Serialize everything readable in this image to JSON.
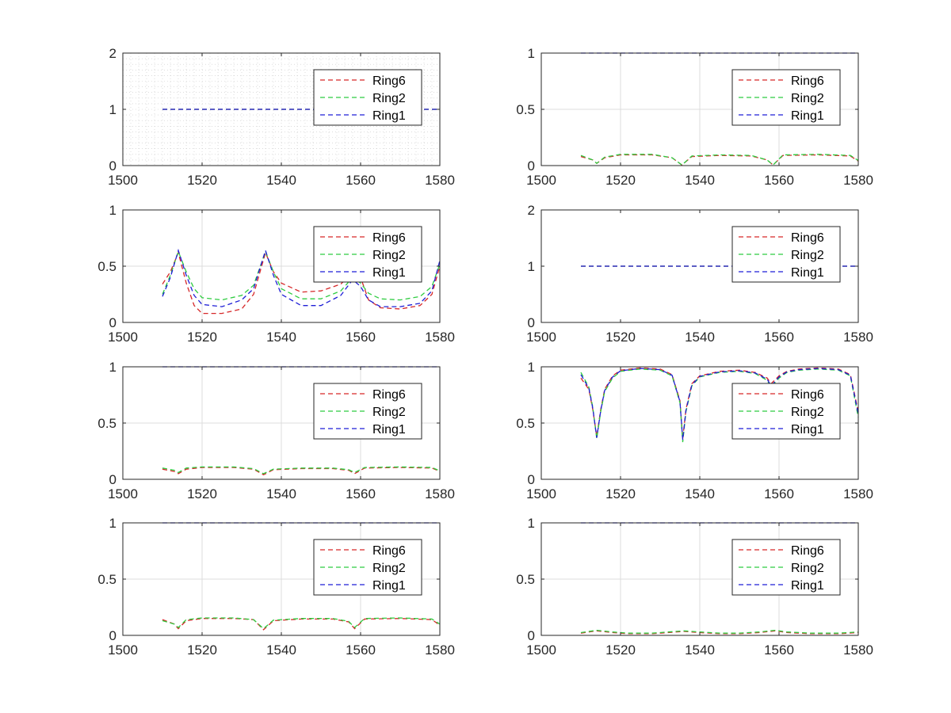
{
  "figure": {
    "background": "#ffffff",
    "axes_color": "#262626",
    "grid_color": "#dcdcdc"
  },
  "series_styles": {
    "Ring6": {
      "color": "#d62728"
    },
    "Ring2": {
      "color": "#2ecc40"
    },
    "Ring1": {
      "color": "#1f1fd6"
    }
  },
  "chart_data": [
    {
      "type": "line",
      "position": "row1-left",
      "xlim": [
        1500,
        1580
      ],
      "ylim": [
        0,
        2
      ],
      "xticks": [
        1500,
        1520,
        1540,
        1560,
        1580
      ],
      "yticks": [
        0,
        1,
        2
      ],
      "grid": "minor",
      "legend_placement": "top-right",
      "series": [
        {
          "name": "Ring6",
          "x": [
            1510,
            1580
          ],
          "y": [
            1,
            1
          ]
        },
        {
          "name": "Ring2",
          "x": [
            1510,
            1580
          ],
          "y": [
            1,
            1
          ]
        },
        {
          "name": "Ring1",
          "x": [
            1510,
            1580
          ],
          "y": [
            1,
            1
          ]
        }
      ]
    },
    {
      "type": "line",
      "position": "row1-right",
      "xlim": [
        1500,
        1580
      ],
      "ylim": [
        0,
        1
      ],
      "xticks": [
        1500,
        1520,
        1540,
        1560,
        1580
      ],
      "yticks": [
        0,
        0.5,
        1
      ],
      "grid": "major",
      "legend_placement": "top-right",
      "series": [
        {
          "name": "Ring6",
          "x": [
            1510,
            1513,
            1514,
            1516,
            1520,
            1528,
            1533,
            1535.5,
            1538,
            1545,
            1553,
            1557,
            1558.5,
            1561,
            1570,
            1578,
            1580
          ],
          "y": [
            0.08,
            0.05,
            0.02,
            0.07,
            0.095,
            0.095,
            0.07,
            0.005,
            0.08,
            0.09,
            0.085,
            0.05,
            0.005,
            0.09,
            0.095,
            0.085,
            0.04
          ]
        },
        {
          "name": "Ring2",
          "x": [
            1510,
            1513,
            1514,
            1516,
            1520,
            1528,
            1533,
            1535.5,
            1538,
            1545,
            1553,
            1557,
            1558.5,
            1561,
            1570,
            1578,
            1580
          ],
          "y": [
            0.09,
            0.05,
            0.02,
            0.075,
            0.1,
            0.1,
            0.07,
            0.005,
            0.085,
            0.095,
            0.09,
            0.05,
            0.005,
            0.095,
            0.1,
            0.09,
            0.045
          ]
        },
        {
          "name": "Ring1",
          "x": [
            1510,
            1580
          ],
          "y": [
            1,
            1
          ]
        }
      ]
    },
    {
      "type": "line",
      "position": "row2-left",
      "xlim": [
        1500,
        1580
      ],
      "ylim": [
        0,
        1
      ],
      "xticks": [
        1500,
        1520,
        1540,
        1560,
        1580
      ],
      "yticks": [
        0,
        0.5,
        1
      ],
      "grid": "major",
      "legend_placement": "top-right",
      "series": [
        {
          "name": "Ring6",
          "x": [
            1510,
            1512,
            1514,
            1516,
            1518,
            1520,
            1525,
            1530,
            1533,
            1536,
            1538,
            1540,
            1545,
            1550,
            1555,
            1558,
            1560,
            1562,
            1565,
            1570,
            1575,
            1578,
            1580
          ],
          "y": [
            0.34,
            0.45,
            0.62,
            0.35,
            0.15,
            0.08,
            0.08,
            0.12,
            0.25,
            0.62,
            0.45,
            0.35,
            0.27,
            0.28,
            0.34,
            0.45,
            0.4,
            0.2,
            0.13,
            0.12,
            0.15,
            0.25,
            0.5
          ]
        },
        {
          "name": "Ring2",
          "x": [
            1510,
            1512,
            1514,
            1516,
            1518,
            1520,
            1525,
            1530,
            1533,
            1536,
            1538,
            1540,
            1545,
            1550,
            1555,
            1558,
            1560,
            1562,
            1565,
            1570,
            1575,
            1578,
            1580
          ],
          "y": [
            0.25,
            0.42,
            0.63,
            0.45,
            0.3,
            0.22,
            0.2,
            0.24,
            0.33,
            0.63,
            0.45,
            0.3,
            0.21,
            0.21,
            0.28,
            0.4,
            0.35,
            0.26,
            0.21,
            0.2,
            0.23,
            0.32,
            0.52
          ]
        },
        {
          "name": "Ring1",
          "x": [
            1510,
            1512,
            1514,
            1516,
            1518,
            1520,
            1525,
            1530,
            1533,
            1536,
            1538,
            1540,
            1545,
            1550,
            1555,
            1558,
            1560,
            1562,
            1565,
            1570,
            1575,
            1578,
            1580
          ],
          "y": [
            0.23,
            0.4,
            0.64,
            0.42,
            0.24,
            0.16,
            0.14,
            0.2,
            0.3,
            0.64,
            0.42,
            0.25,
            0.15,
            0.15,
            0.24,
            0.38,
            0.32,
            0.2,
            0.14,
            0.14,
            0.17,
            0.28,
            0.55
          ]
        }
      ]
    },
    {
      "type": "line",
      "position": "row2-right",
      "xlim": [
        1500,
        1580
      ],
      "ylim": [
        0,
        2
      ],
      "xticks": [
        1500,
        1520,
        1540,
        1560,
        1580
      ],
      "yticks": [
        0,
        1,
        2
      ],
      "grid": "none",
      "legend_placement": "top-right",
      "series": [
        {
          "name": "Ring6",
          "x": [
            1510,
            1580
          ],
          "y": [
            1,
            1
          ]
        },
        {
          "name": "Ring2",
          "x": [
            1510,
            1580
          ],
          "y": [
            1,
            1
          ]
        },
        {
          "name": "Ring1",
          "x": [
            1510,
            1580
          ],
          "y": [
            1,
            1
          ]
        }
      ]
    },
    {
      "type": "line",
      "position": "row3-left",
      "xlim": [
        1500,
        1580
      ],
      "ylim": [
        0,
        1
      ],
      "xticks": [
        1500,
        1520,
        1540,
        1560,
        1580
      ],
      "yticks": [
        0,
        0.5,
        1
      ],
      "grid": "major",
      "legend_placement": "top-right",
      "series": [
        {
          "name": "Ring6",
          "x": [
            1510,
            1513,
            1514,
            1516,
            1520,
            1528,
            1533,
            1535.5,
            1538,
            1545,
            1553,
            1557,
            1558.5,
            1561,
            1570,
            1578,
            1580
          ],
          "y": [
            0.09,
            0.07,
            0.05,
            0.09,
            0.105,
            0.105,
            0.09,
            0.04,
            0.085,
            0.095,
            0.095,
            0.08,
            0.05,
            0.1,
            0.105,
            0.1,
            0.07
          ]
        },
        {
          "name": "Ring2",
          "x": [
            1510,
            1513,
            1514,
            1516,
            1520,
            1528,
            1533,
            1535.5,
            1538,
            1545,
            1553,
            1557,
            1558.5,
            1561,
            1570,
            1578,
            1580
          ],
          "y": [
            0.1,
            0.08,
            0.06,
            0.1,
            0.11,
            0.11,
            0.095,
            0.05,
            0.09,
            0.1,
            0.1,
            0.085,
            0.06,
            0.105,
            0.11,
            0.105,
            0.075
          ]
        },
        {
          "name": "Ring1",
          "x": [
            1510,
            1580
          ],
          "y": [
            1,
            1
          ]
        }
      ]
    },
    {
      "type": "line",
      "position": "row3-right",
      "xlim": [
        1500,
        1580
      ],
      "ylim": [
        0,
        1
      ],
      "xticks": [
        1500,
        1520,
        1540,
        1560,
        1580
      ],
      "yticks": [
        0,
        0.5,
        1
      ],
      "grid": "major",
      "legend_placement": "top-right",
      "series": [
        {
          "name": "Ring6",
          "x": [
            1510,
            1512,
            1513,
            1514,
            1515,
            1516,
            1518,
            1520,
            1525,
            1530,
            1533,
            1535,
            1535.7,
            1536.5,
            1538,
            1540,
            1545,
            1550,
            1554,
            1557,
            1558,
            1560,
            1562,
            1565,
            1570,
            1575,
            1578,
            1580
          ],
          "y": [
            0.9,
            0.8,
            0.62,
            0.38,
            0.62,
            0.8,
            0.92,
            0.97,
            0.99,
            0.98,
            0.93,
            0.7,
            0.36,
            0.62,
            0.85,
            0.92,
            0.96,
            0.97,
            0.95,
            0.9,
            0.85,
            0.92,
            0.96,
            0.98,
            0.99,
            0.98,
            0.93,
            0.6
          ]
        },
        {
          "name": "Ring2",
          "x": [
            1510,
            1512,
            1513,
            1514,
            1515,
            1516,
            1518,
            1520,
            1525,
            1530,
            1533,
            1535,
            1535.7,
            1536.5,
            1538,
            1540,
            1545,
            1550,
            1554,
            1557,
            1558,
            1560,
            1562,
            1565,
            1570,
            1575,
            1578,
            1580
          ],
          "y": [
            0.95,
            0.82,
            0.64,
            0.36,
            0.6,
            0.78,
            0.9,
            0.96,
            0.98,
            0.97,
            0.92,
            0.68,
            0.33,
            0.6,
            0.83,
            0.91,
            0.95,
            0.96,
            0.94,
            0.88,
            0.82,
            0.9,
            0.95,
            0.97,
            0.98,
            0.97,
            0.92,
            0.55
          ]
        },
        {
          "name": "Ring1",
          "x": [
            1510,
            1512,
            1513,
            1514,
            1515,
            1516,
            1518,
            1520,
            1525,
            1530,
            1533,
            1535,
            1535.7,
            1536.5,
            1538,
            1540,
            1545,
            1550,
            1554,
            1557,
            1558,
            1560,
            1562,
            1565,
            1570,
            1575,
            1578,
            1580
          ],
          "y": [
            0.93,
            0.81,
            0.63,
            0.37,
            0.61,
            0.79,
            0.91,
            0.965,
            0.985,
            0.975,
            0.925,
            0.69,
            0.35,
            0.61,
            0.84,
            0.915,
            0.955,
            0.965,
            0.945,
            0.89,
            0.83,
            0.91,
            0.955,
            0.975,
            0.985,
            0.975,
            0.925,
            0.58
          ]
        }
      ]
    },
    {
      "type": "line",
      "position": "row4-left",
      "xlim": [
        1500,
        1580
      ],
      "ylim": [
        0,
        1
      ],
      "xticks": [
        1500,
        1520,
        1540,
        1560,
        1580
      ],
      "yticks": [
        0,
        0.5,
        1
      ],
      "grid": "major",
      "legend_placement": "top-right",
      "series": [
        {
          "name": "Ring6",
          "x": [
            1510,
            1513,
            1514,
            1516,
            1520,
            1528,
            1533,
            1535.5,
            1538,
            1545,
            1553,
            1557,
            1558.5,
            1561,
            1570,
            1578,
            1580
          ],
          "y": [
            0.14,
            0.1,
            0.06,
            0.13,
            0.15,
            0.15,
            0.14,
            0.05,
            0.13,
            0.145,
            0.145,
            0.12,
            0.06,
            0.145,
            0.15,
            0.14,
            0.09
          ]
        },
        {
          "name": "Ring2",
          "x": [
            1510,
            1513,
            1514,
            1516,
            1520,
            1528,
            1533,
            1535.5,
            1538,
            1545,
            1553,
            1557,
            1558.5,
            1561,
            1570,
            1578,
            1580
          ],
          "y": [
            0.13,
            0.1,
            0.07,
            0.14,
            0.155,
            0.155,
            0.14,
            0.06,
            0.135,
            0.15,
            0.15,
            0.125,
            0.07,
            0.15,
            0.155,
            0.145,
            0.1
          ]
        },
        {
          "name": "Ring1",
          "x": [
            1510,
            1580
          ],
          "y": [
            1,
            1
          ]
        }
      ]
    },
    {
      "type": "line",
      "position": "row4-right",
      "xlim": [
        1500,
        1580
      ],
      "ylim": [
        0,
        1
      ],
      "xticks": [
        1500,
        1520,
        1540,
        1560,
        1580
      ],
      "yticks": [
        0,
        0.5,
        1
      ],
      "grid": "major",
      "legend_placement": "top-right",
      "series": [
        {
          "name": "Ring6",
          "x": [
            1510,
            1514,
            1518,
            1522,
            1528,
            1532,
            1536,
            1540,
            1545,
            1550,
            1555,
            1559,
            1562,
            1568,
            1575,
            1580
          ],
          "y": [
            0.02,
            0.04,
            0.025,
            0.015,
            0.015,
            0.025,
            0.035,
            0.025,
            0.015,
            0.015,
            0.025,
            0.04,
            0.025,
            0.015,
            0.015,
            0.025
          ]
        },
        {
          "name": "Ring2",
          "x": [
            1510,
            1514,
            1518,
            1522,
            1528,
            1532,
            1536,
            1540,
            1545,
            1550,
            1555,
            1559,
            1562,
            1568,
            1575,
            1580
          ],
          "y": [
            0.025,
            0.045,
            0.03,
            0.02,
            0.02,
            0.03,
            0.04,
            0.03,
            0.02,
            0.02,
            0.03,
            0.045,
            0.03,
            0.02,
            0.02,
            0.03
          ]
        },
        {
          "name": "Ring1",
          "x": [
            1510,
            1580
          ],
          "y": [
            1,
            1
          ]
        }
      ]
    }
  ]
}
